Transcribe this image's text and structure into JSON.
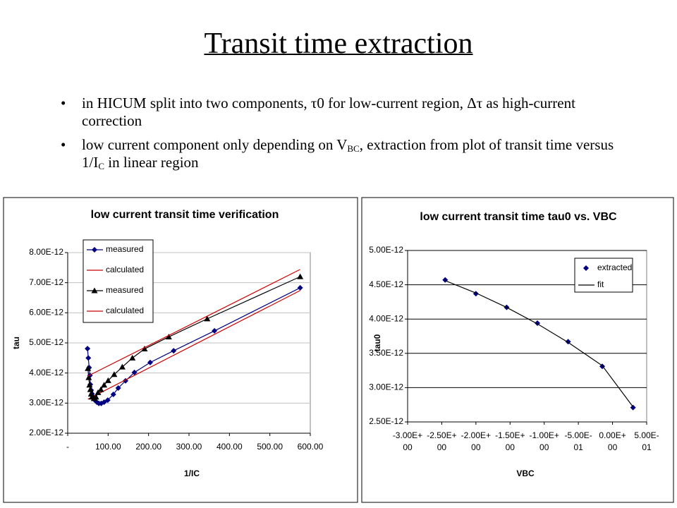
{
  "title": "Transit time extraction",
  "bullets": [
    [
      {
        "text": "in HICUM split into two components, τ0 for low-current region, Δτ as high-current correction",
        "sub": false
      }
    ],
    [
      {
        "text": "low current component only depending on V",
        "sub": false
      },
      {
        "text": "BC",
        "sub": true
      },
      {
        "text": ", extraction from plot of transit time versus 1/I",
        "sub": false
      },
      {
        "text": "C",
        "sub": true
      },
      {
        "text": " in linear region",
        "sub": false
      }
    ]
  ],
  "chart_data": [
    {
      "type": "line",
      "title": "low current transit time verification",
      "x_label": "1/IC",
      "y_label": "tau",
      "xlim": [
        0,
        600
      ],
      "ylim": [
        2e-12,
        8e-12
      ],
      "xticks": [
        {
          "value": 0,
          "label": "-"
        },
        {
          "value": 100,
          "label": "100.00"
        },
        {
          "value": 200,
          "label": "200.00"
        },
        {
          "value": 300,
          "label": "300.00"
        },
        {
          "value": 400,
          "label": "400.00"
        },
        {
          "value": 500,
          "label": "500.00"
        },
        {
          "value": 600,
          "label": "600.00"
        }
      ],
      "yticks": [
        {
          "value": 2e-12,
          "label": "2.00E-12"
        },
        {
          "value": 3e-12,
          "label": "3.00E-12"
        },
        {
          "value": 4e-12,
          "label": "4.00E-12"
        },
        {
          "value": 5e-12,
          "label": "5.00E-12"
        },
        {
          "value": 6e-12,
          "label": "6.00E-12"
        },
        {
          "value": 7e-12,
          "label": "7.00E-12"
        },
        {
          "value": 8e-12,
          "label": "8.00E-12"
        }
      ],
      "grid": true,
      "legend": "upper left",
      "series": [
        {
          "name": "measured",
          "color": "#000080",
          "marker": "diamond",
          "line": true,
          "x": [
            49,
            51,
            53,
            55,
            56,
            58,
            60,
            63,
            67,
            72,
            77,
            83,
            90,
            99,
            113,
            125,
            143,
            165,
            204,
            262,
            363,
            575
          ],
          "values": [
            4.81e-12,
            4.5e-12,
            4.18e-12,
            3.92e-12,
            3.62e-12,
            3.43e-12,
            3.31e-12,
            3.22e-12,
            3.1e-12,
            3.03e-12,
            2.99e-12,
            2.99e-12,
            3.03e-12,
            3.1e-12,
            3.29e-12,
            3.5e-12,
            3.74e-12,
            4.02e-12,
            4.35e-12,
            4.74e-12,
            5.4e-12,
            6.83e-12
          ]
        },
        {
          "name": "calculated",
          "color": "#cc0000",
          "marker": "none",
          "line": true,
          "x": [
            50,
            575
          ],
          "values": [
            3.13e-12,
            6.74e-12
          ]
        },
        {
          "name": "measured",
          "color": "#000000",
          "marker": "triangle",
          "line": true,
          "x": [
            50,
            52,
            54,
            56,
            58,
            60,
            65,
            70,
            75,
            82,
            90,
            100,
            115,
            135,
            160,
            190,
            250,
            345,
            575
          ],
          "values": [
            4.15e-12,
            3.85e-12,
            3.6e-12,
            3.45e-12,
            3.3e-12,
            3.2e-12,
            3.15e-12,
            3.2e-12,
            3.35e-12,
            3.45e-12,
            3.6e-12,
            3.75e-12,
            3.95e-12,
            4.2e-12,
            4.5e-12,
            4.8e-12,
            5.2e-12,
            5.8e-12,
            7.2e-12
          ]
        },
        {
          "name": "calculated",
          "color": "#cc0000",
          "marker": "none",
          "line": true,
          "x": [
            50,
            575
          ],
          "values": [
            3.9e-12,
            7.44e-12
          ]
        }
      ]
    },
    {
      "type": "line",
      "title": "low current transit time tau0 vs. VBC",
      "x_label": "VBC",
      "y_label": "tau0",
      "xlim": [
        -3,
        0.5
      ],
      "ylim": [
        2.5e-12,
        5e-12
      ],
      "xticks": [
        {
          "value": -3,
          "label": "-3.00E+00"
        },
        {
          "value": -2.5,
          "label": "-2.50E+00"
        },
        {
          "value": -2,
          "label": "-2.00E+00"
        },
        {
          "value": -1.5,
          "label": "-1.50E+00"
        },
        {
          "value": -1,
          "label": "-1.00E+00"
        },
        {
          "value": -0.5,
          "label": "-5.00E-01"
        },
        {
          "value": 0,
          "label": "0.00E+00"
        },
        {
          "value": 0.5,
          "label": "5.00E-01"
        }
      ],
      "yticks": [
        {
          "value": 2.5e-12,
          "label": "2.50E-12"
        },
        {
          "value": 3e-12,
          "label": "3.00E-12"
        },
        {
          "value": 3.5e-12,
          "label": "3.50E-12"
        },
        {
          "value": 4e-12,
          "label": "4.00E-12"
        },
        {
          "value": 4.5e-12,
          "label": "4.50E-12"
        },
        {
          "value": 5e-12,
          "label": "5.00E-12"
        }
      ],
      "grid": true,
      "legend": "upper right",
      "series": [
        {
          "name": "extracted",
          "color": "#000080",
          "marker": "diamond",
          "line": false,
          "x": [
            -2.45,
            -2.0,
            -1.55,
            -1.1,
            -0.65,
            -0.15,
            0.3
          ],
          "values": [
            4.57e-12,
            4.37e-12,
            4.17e-12,
            3.94e-12,
            3.67e-12,
            3.31e-12,
            2.71e-12
          ]
        },
        {
          "name": "fit",
          "color": "#000000",
          "marker": "none",
          "line": true,
          "x": [
            -2.45,
            -2.0,
            -1.55,
            -1.1,
            -0.65,
            -0.15,
            0.3
          ],
          "values": [
            4.56e-12,
            4.38e-12,
            4.17e-12,
            3.93e-12,
            3.66e-12,
            3.32e-12,
            2.72e-12
          ]
        }
      ]
    }
  ]
}
